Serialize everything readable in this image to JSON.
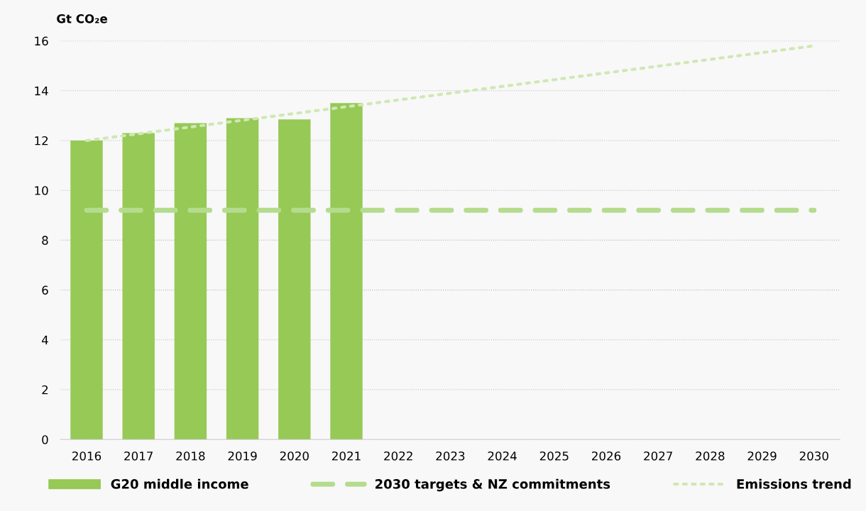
{
  "chart_data": {
    "type": "bar",
    "ylabel": "Gt CO₂e",
    "categories": [
      "2016",
      "2017",
      "2018",
      "2019",
      "2020",
      "2021",
      "2022",
      "2023",
      "2024",
      "2025",
      "2026",
      "2027",
      "2028",
      "2029",
      "2030"
    ],
    "series": [
      {
        "name": "G20 middle income",
        "color": "#96c955",
        "values": [
          12.0,
          12.3,
          12.7,
          12.9,
          12.85,
          13.5,
          null,
          null,
          null,
          null,
          null,
          null,
          null,
          null,
          null
        ]
      },
      {
        "name": "2030 targets & NZ commitments",
        "type": "line",
        "line_style": "dashed",
        "color": "#b5dc8e",
        "values": [
          9.2,
          null,
          null,
          null,
          null,
          null,
          null,
          null,
          null,
          null,
          null,
          null,
          null,
          null,
          9.2
        ]
      },
      {
        "name": "Emissions trend",
        "type": "line",
        "line_style": "dotted",
        "color": "#cfe8b5",
        "values": [
          12.0,
          null,
          null,
          null,
          null,
          null,
          null,
          null,
          null,
          null,
          null,
          null,
          null,
          null,
          15.8
        ]
      }
    ],
    "ylim": [
      0,
      16
    ],
    "yticks": [
      0,
      2,
      4,
      6,
      8,
      10,
      12,
      14,
      16
    ],
    "grid": "y",
    "legend": "bottom"
  }
}
